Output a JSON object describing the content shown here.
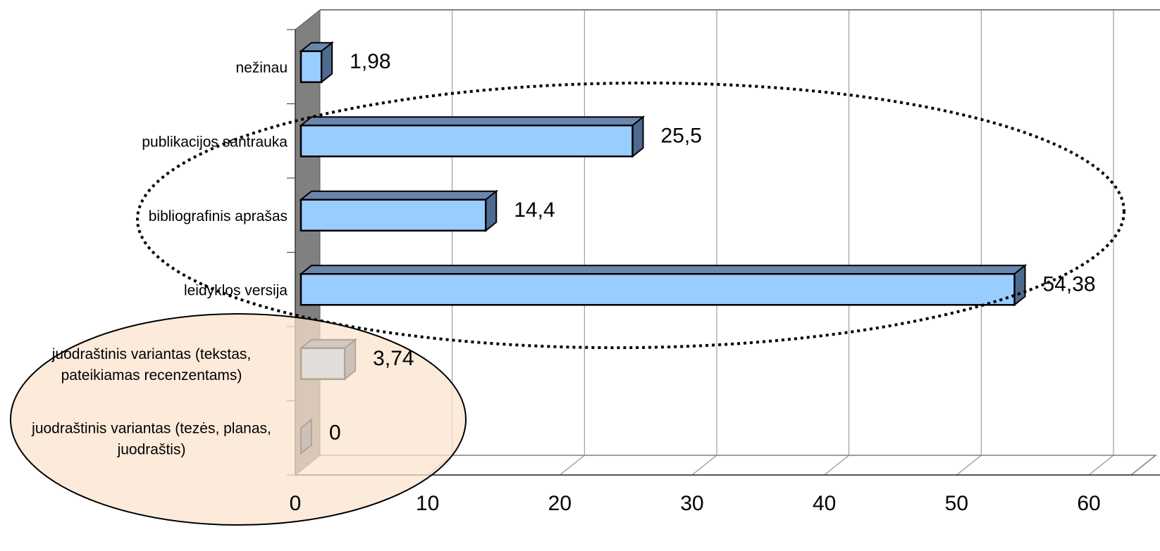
{
  "chart_data": {
    "type": "bar",
    "orientation": "horizontal",
    "categories": [
      [
        "nežinau"
      ],
      [
        "publikacijos santrauka"
      ],
      [
        "bibliografinis aprašas"
      ],
      [
        "leidyklos versija"
      ],
      [
        "juodraštinis variantas (tekstas,",
        "pateikiamas recenzentams)"
      ],
      [
        "juodraštinis variantas (tezės, planas,",
        "juodraštis)"
      ]
    ],
    "values": [
      1.98,
      25.5,
      14.4,
      54.38,
      3.74,
      0
    ],
    "value_labels": [
      "1,98",
      "25,5",
      "14,4",
      "54,38",
      "3,74",
      "0"
    ],
    "xlim": [
      0,
      60
    ],
    "xticks": [
      0,
      10,
      20,
      30,
      40,
      50,
      60
    ],
    "grid": true,
    "legend": "none",
    "bar_color": "#99CCFF",
    "bar_side_color": "#4F6A8F",
    "wall_color": "#808080",
    "annotations": [
      {
        "shape": "dotted-ellipse",
        "encloses": [
          "publikacijos santrauka",
          "bibliografinis aprašas",
          "leidyklos versija"
        ]
      },
      {
        "shape": "filled-ellipse",
        "fill": "#FBE3CC",
        "encloses": [
          "juodraštinis variantas (tekstas, pateikiamas recenzentams)",
          "juodraštinis variantas (tezės, planas, juodraštis)"
        ]
      }
    ]
  }
}
